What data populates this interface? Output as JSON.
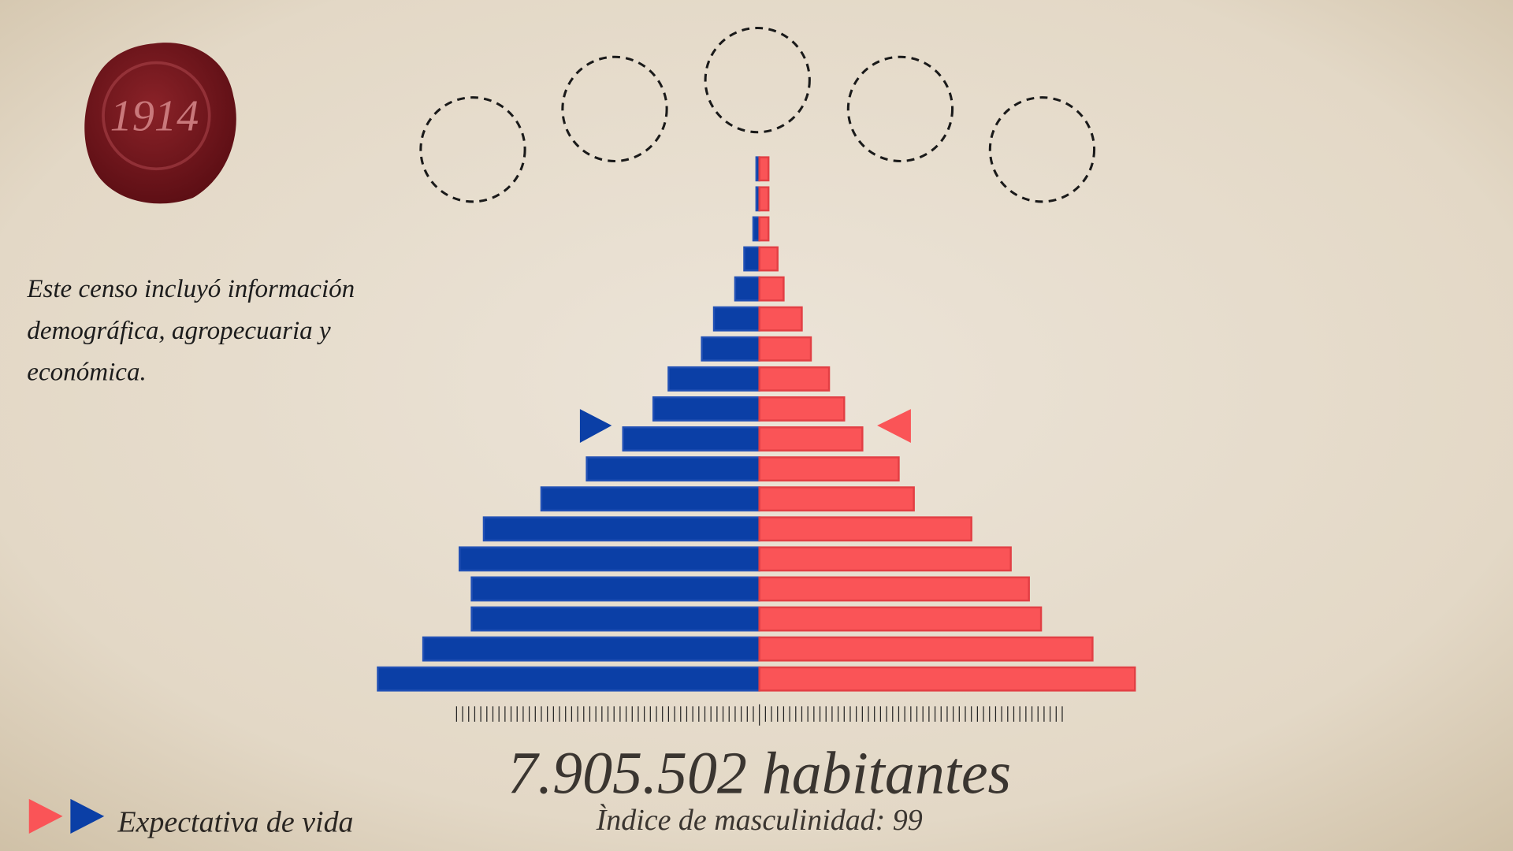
{
  "chart_data": {
    "type": "pyramid",
    "seal_text": "1914",
    "description": "Este censo incluyó información demográfica, agropecuaria y económica.",
    "headline": "7.905.502 habitantes",
    "subheadline": "Ìndice de masculinidad: 99",
    "footer_label": "Expectativa de vida",
    "categories": [
      null,
      null,
      null,
      null,
      null,
      null,
      null,
      null,
      null,
      null,
      null,
      null,
      null,
      null,
      null,
      null,
      null,
      null
    ],
    "series": [
      {
        "color": "#0b3fa6",
        "side": "left",
        "values": [
          1,
          1,
          2,
          5,
          8,
          15,
          19,
          30,
          35,
          45,
          57,
          72,
          91,
          99,
          95,
          95,
          111,
          126
        ]
      },
      {
        "color": "#fa5457",
        "side": "right",
        "values": [
          3,
          3,
          3,
          6,
          8,
          14,
          17,
          23,
          28,
          34,
          46,
          51,
          70,
          83,
          89,
          93,
          110,
          124
        ]
      }
    ],
    "xlim": [
      -130,
      130
    ],
    "xticks": [
      -100,
      -98,
      -96,
      -94,
      -92,
      -90,
      -88,
      -86,
      -84,
      -82,
      -80,
      -78,
      -76,
      -74,
      -72,
      -70,
      -68,
      -66,
      -64,
      -62,
      -60,
      -58,
      -56,
      -54,
      -52,
      -50,
      -48,
      -46,
      -44,
      -42,
      -40,
      -38,
      -36,
      -34,
      -32,
      -30,
      -28,
      -26,
      -24,
      -22,
      -20,
      -18,
      -16,
      -14,
      -12,
      -10,
      -8,
      -6,
      -4,
      -2,
      0,
      2,
      4,
      6,
      8,
      10,
      12,
      14,
      16,
      18,
      20,
      22,
      24,
      26,
      28,
      30,
      32,
      34,
      36,
      38,
      40,
      42,
      44,
      46,
      48,
      50,
      52,
      54,
      56,
      58,
      60,
      62,
      64,
      66,
      68,
      70,
      72,
      74,
      76,
      78,
      80,
      82,
      84,
      86,
      88,
      90,
      92,
      94,
      96,
      98,
      100
    ]
  }
}
